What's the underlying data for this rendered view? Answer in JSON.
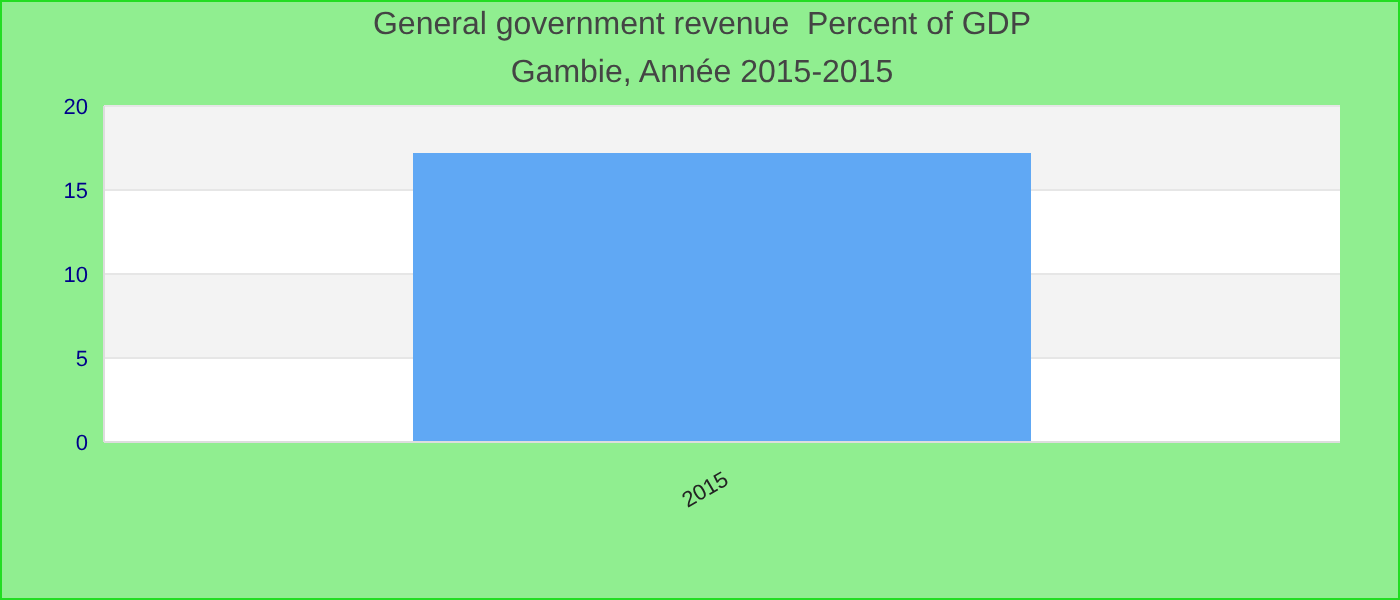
{
  "chart_data": {
    "type": "bar",
    "title": "General government revenue  Percent of GDP",
    "subtitle": "Gambie, Année 2015-2015",
    "categories": [
      "2015"
    ],
    "values": [
      17.2
    ],
    "color": "#60a8f4",
    "ylim": [
      0,
      20
    ],
    "yticks": [
      0,
      5,
      10,
      15,
      20
    ],
    "grid": "y",
    "legend": false
  }
}
